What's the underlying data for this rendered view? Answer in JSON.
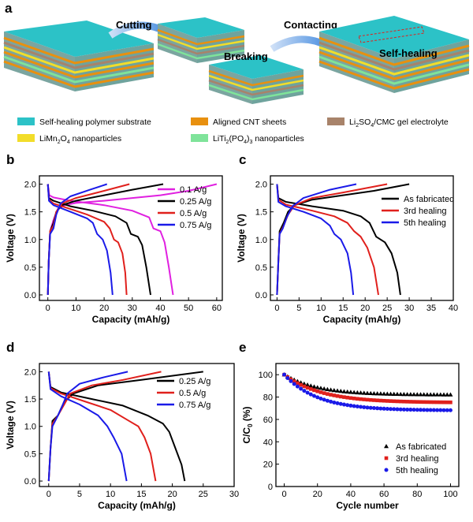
{
  "figure": {
    "panel_a": {
      "label": "a",
      "steps": [
        "Cutting",
        "Contacting",
        "Breaking",
        "Self-healing"
      ],
      "legend": [
        {
          "text": "Self-healing polymer substrate",
          "color": "#2cc2c7"
        },
        {
          "text": "Aligned CNT sheets",
          "color": "#e8900f"
        },
        {
          "text": "Li2SO4/CMC gel electrolyte",
          "color": "#a8836a"
        },
        {
          "text": "LiMn2O4 nanoparticles",
          "color": "#f2dd2a"
        },
        {
          "text": "LiTi2(PO4)3 nanoparticles",
          "color": "#7fe39a"
        }
      ]
    },
    "colors": {
      "black": "#000000",
      "red": "#e0201c",
      "blue": "#1a1ae8",
      "magenta": "#e020e0"
    }
  },
  "chart_data": [
    {
      "panel": "b",
      "type": "line",
      "xlabel": "Capacity (mAh/g)",
      "ylabel": "Voltage (V)",
      "xlim": [
        -3,
        62
      ],
      "ylim": [
        -0.1,
        2.15
      ],
      "xticks": [
        0,
        10,
        20,
        30,
        40,
        50,
        60
      ],
      "yticks": [
        0.0,
        0.5,
        1.0,
        1.5,
        2.0
      ],
      "legend_position": "right",
      "series": [
        {
          "name": "0.1 A/g",
          "color": "#e020e0",
          "charge": [
            [
              0,
              0
            ],
            [
              0.3,
              0.6
            ],
            [
              0.8,
              1.15
            ],
            [
              2,
              1.35
            ],
            [
              3.5,
              1.55
            ],
            [
              6,
              1.62
            ],
            [
              10,
              1.66
            ],
            [
              20,
              1.7
            ],
            [
              30,
              1.75
            ],
            [
              40,
              1.8
            ],
            [
              50,
              1.88
            ],
            [
              60,
              2.0
            ]
          ],
          "discharge": [
            [
              0,
              2.0
            ],
            [
              0.5,
              1.8
            ],
            [
              2,
              1.76
            ],
            [
              8,
              1.7
            ],
            [
              20,
              1.62
            ],
            [
              30,
              1.52
            ],
            [
              36,
              1.4
            ],
            [
              37.5,
              1.2
            ],
            [
              40,
              1.15
            ],
            [
              41.5,
              0.95
            ],
            [
              43,
              0.5
            ],
            [
              44.5,
              0.0
            ]
          ]
        },
        {
          "name": "0.25 A/g",
          "color": "#000000",
          "charge": [
            [
              0,
              0
            ],
            [
              0.3,
              0.6
            ],
            [
              0.8,
              1.15
            ],
            [
              2,
              1.3
            ],
            [
              3,
              1.5
            ],
            [
              5,
              1.62
            ],
            [
              10,
              1.7
            ],
            [
              20,
              1.8
            ],
            [
              30,
              1.9
            ],
            [
              41,
              2.0
            ]
          ],
          "discharge": [
            [
              0,
              2.0
            ],
            [
              0.4,
              1.75
            ],
            [
              2,
              1.7
            ],
            [
              8,
              1.6
            ],
            [
              16,
              1.52
            ],
            [
              24,
              1.42
            ],
            [
              28,
              1.3
            ],
            [
              29.5,
              1.1
            ],
            [
              32,
              1.05
            ],
            [
              33.5,
              0.9
            ],
            [
              35,
              0.5
            ],
            [
              36.5,
              0.0
            ]
          ]
        },
        {
          "name": "0.5 A/g",
          "color": "#e0201c",
          "charge": [
            [
              0,
              0
            ],
            [
              0.3,
              0.6
            ],
            [
              0.8,
              1.15
            ],
            [
              2,
              1.25
            ],
            [
              3,
              1.5
            ],
            [
              5,
              1.65
            ],
            [
              10,
              1.75
            ],
            [
              20,
              1.88
            ],
            [
              29,
              2.0
            ]
          ],
          "discharge": [
            [
              0,
              2.0
            ],
            [
              0.4,
              1.72
            ],
            [
              2,
              1.65
            ],
            [
              8,
              1.55
            ],
            [
              14,
              1.45
            ],
            [
              20,
              1.32
            ],
            [
              22,
              1.2
            ],
            [
              23.5,
              1.0
            ],
            [
              25,
              0.95
            ],
            [
              26.5,
              0.75
            ],
            [
              27.5,
              0.4
            ],
            [
              28,
              0.0
            ]
          ]
        },
        {
          "name": "0.75 A/g",
          "color": "#1a1ae8",
          "charge": [
            [
              0,
              0
            ],
            [
              0.3,
              0.6
            ],
            [
              0.8,
              1.1
            ],
            [
              2,
              1.2
            ],
            [
              3,
              1.45
            ],
            [
              4.5,
              1.65
            ],
            [
              8,
              1.78
            ],
            [
              15,
              1.9
            ],
            [
              21,
              2.0
            ]
          ],
          "discharge": [
            [
              0,
              2.0
            ],
            [
              0.4,
              1.7
            ],
            [
              2,
              1.62
            ],
            [
              8,
              1.5
            ],
            [
              14,
              1.38
            ],
            [
              16,
              1.3
            ],
            [
              17.5,
              1.1
            ],
            [
              19.5,
              1.0
            ],
            [
              21,
              0.8
            ],
            [
              22.3,
              0.4
            ],
            [
              23,
              0.0
            ]
          ]
        }
      ]
    },
    {
      "panel": "c",
      "type": "line",
      "xlabel": "Capacity (mAh/g)",
      "ylabel": "Voltage (V)",
      "xlim": [
        -1.5,
        40
      ],
      "ylim": [
        -0.1,
        2.15
      ],
      "xticks": [
        0,
        5,
        10,
        15,
        20,
        25,
        30,
        35,
        40
      ],
      "yticks": [
        0.0,
        0.5,
        1.0,
        1.5,
        2.0
      ],
      "legend_position": "right",
      "series": [
        {
          "name": "As fabricated",
          "color": "#000000",
          "charge": [
            [
              0,
              0
            ],
            [
              0.3,
              0.6
            ],
            [
              0.6,
              1.15
            ],
            [
              1.5,
              1.3
            ],
            [
              2.5,
              1.5
            ],
            [
              4,
              1.62
            ],
            [
              8,
              1.72
            ],
            [
              15,
              1.8
            ],
            [
              22,
              1.88
            ],
            [
              30,
              2.0
            ]
          ],
          "discharge": [
            [
              0,
              2.0
            ],
            [
              0.3,
              1.75
            ],
            [
              2,
              1.68
            ],
            [
              8,
              1.6
            ],
            [
              15,
              1.52
            ],
            [
              19,
              1.42
            ],
            [
              21,
              1.3
            ],
            [
              22.5,
              1.05
            ],
            [
              24.5,
              0.95
            ],
            [
              26,
              0.75
            ],
            [
              27.3,
              0.4
            ],
            [
              28,
              0.0
            ]
          ]
        },
        {
          "name": "3rd healing",
          "color": "#e0201c",
          "charge": [
            [
              0,
              0
            ],
            [
              0.3,
              0.6
            ],
            [
              0.6,
              1.1
            ],
            [
              1.5,
              1.25
            ],
            [
              2.5,
              1.45
            ],
            [
              4,
              1.62
            ],
            [
              8,
              1.75
            ],
            [
              15,
              1.85
            ],
            [
              25,
              2.0
            ]
          ],
          "discharge": [
            [
              0,
              2.0
            ],
            [
              0.3,
              1.72
            ],
            [
              2,
              1.63
            ],
            [
              8,
              1.52
            ],
            [
              13,
              1.42
            ],
            [
              16,
              1.3
            ],
            [
              17.5,
              1.15
            ],
            [
              19,
              1.05
            ],
            [
              20.5,
              0.85
            ],
            [
              22,
              0.5
            ],
            [
              23,
              0.0
            ]
          ]
        },
        {
          "name": "5th healing",
          "color": "#1a1ae8",
          "charge": [
            [
              0,
              0
            ],
            [
              0.3,
              0.6
            ],
            [
              0.6,
              1.1
            ],
            [
              1.3,
              1.2
            ],
            [
              2.2,
              1.4
            ],
            [
              3.5,
              1.6
            ],
            [
              6,
              1.75
            ],
            [
              12,
              1.9
            ],
            [
              18,
              2.0
            ]
          ],
          "discharge": [
            [
              0,
              2.0
            ],
            [
              0.3,
              1.68
            ],
            [
              2,
              1.6
            ],
            [
              6,
              1.5
            ],
            [
              10,
              1.38
            ],
            [
              12,
              1.25
            ],
            [
              13,
              1.1
            ],
            [
              14.5,
              1.0
            ],
            [
              16,
              0.75
            ],
            [
              16.8,
              0.4
            ],
            [
              17.3,
              0.0
            ]
          ]
        }
      ]
    },
    {
      "panel": "d",
      "type": "line",
      "xlabel": "Capacity (mAh/g)",
      "ylabel": "Voltage (V)",
      "xlim": [
        -1.5,
        30
      ],
      "ylim": [
        -0.1,
        2.15
      ],
      "xticks": [
        0,
        5,
        10,
        15,
        20,
        25,
        30
      ],
      "yticks": [
        0.0,
        0.5,
        1.0,
        1.5,
        2.0
      ],
      "legend_position": "right",
      "series": [
        {
          "name": "0.25 A/g",
          "color": "#000000",
          "charge": [
            [
              0,
              0
            ],
            [
              0.3,
              0.6
            ],
            [
              0.6,
              1.1
            ],
            [
              1.5,
              1.2
            ],
            [
              2.5,
              1.45
            ],
            [
              4,
              1.6
            ],
            [
              8,
              1.75
            ],
            [
              15,
              1.85
            ],
            [
              25,
              2.0
            ]
          ],
          "discharge": [
            [
              0,
              2.0
            ],
            [
              0.3,
              1.72
            ],
            [
              2,
              1.62
            ],
            [
              7,
              1.5
            ],
            [
              12,
              1.38
            ],
            [
              16,
              1.2
            ],
            [
              18.5,
              1.05
            ],
            [
              19.5,
              0.9
            ],
            [
              20.5,
              0.6
            ],
            [
              21.5,
              0.3
            ],
            [
              22,
              0.0
            ]
          ]
        },
        {
          "name": "0.5 A/g",
          "color": "#e0201c",
          "charge": [
            [
              0,
              0
            ],
            [
              0.3,
              0.6
            ],
            [
              0.6,
              1.05
            ],
            [
              1.5,
              1.2
            ],
            [
              2.5,
              1.4
            ],
            [
              3.5,
              1.6
            ],
            [
              7,
              1.75
            ],
            [
              12,
              1.85
            ],
            [
              18.2,
              2.0
            ]
          ],
          "discharge": [
            [
              0,
              2.0
            ],
            [
              0.3,
              1.7
            ],
            [
              2,
              1.6
            ],
            [
              6,
              1.45
            ],
            [
              10,
              1.3
            ],
            [
              13,
              1.1
            ],
            [
              14.5,
              1.0
            ],
            [
              15.5,
              0.8
            ],
            [
              16.5,
              0.5
            ],
            [
              17.3,
              0.0
            ]
          ]
        },
        {
          "name": "0.75 A/g",
          "color": "#1a1ae8",
          "charge": [
            [
              0,
              0
            ],
            [
              0.3,
              0.6
            ],
            [
              0.6,
              1.0
            ],
            [
              1.5,
              1.2
            ],
            [
              2.3,
              1.4
            ],
            [
              3,
              1.6
            ],
            [
              5,
              1.78
            ],
            [
              9,
              1.9
            ],
            [
              12.8,
              2.0
            ]
          ],
          "discharge": [
            [
              0,
              2.0
            ],
            [
              0.3,
              1.68
            ],
            [
              2,
              1.55
            ],
            [
              5,
              1.4
            ],
            [
              8,
              1.2
            ],
            [
              9.5,
              1.0
            ],
            [
              10.5,
              0.8
            ],
            [
              11.8,
              0.5
            ],
            [
              12.6,
              0.0
            ]
          ]
        }
      ]
    },
    {
      "panel": "e",
      "type": "scatter",
      "xlabel": "Cycle number",
      "ylabel": "C/C0 (%)",
      "xlim": [
        -5,
        105
      ],
      "ylim": [
        0,
        110
      ],
      "xticks": [
        0,
        20,
        40,
        60,
        80,
        100
      ],
      "yticks": [
        0,
        20,
        40,
        60,
        80,
        100
      ],
      "legend_position": "bottom-right",
      "series": [
        {
          "name": "As fabricated",
          "marker": "triangle",
          "color": "#000000",
          "start": 100,
          "end": 82,
          "rate": 0.05
        },
        {
          "name": "3rd healing",
          "marker": "square",
          "color": "#e0201c",
          "start": 100,
          "end": 75,
          "rate": 0.045
        },
        {
          "name": "5th healing",
          "marker": "circle",
          "color": "#1a1ae8",
          "start": 100,
          "end": 68,
          "rate": 0.05
        }
      ]
    }
  ]
}
